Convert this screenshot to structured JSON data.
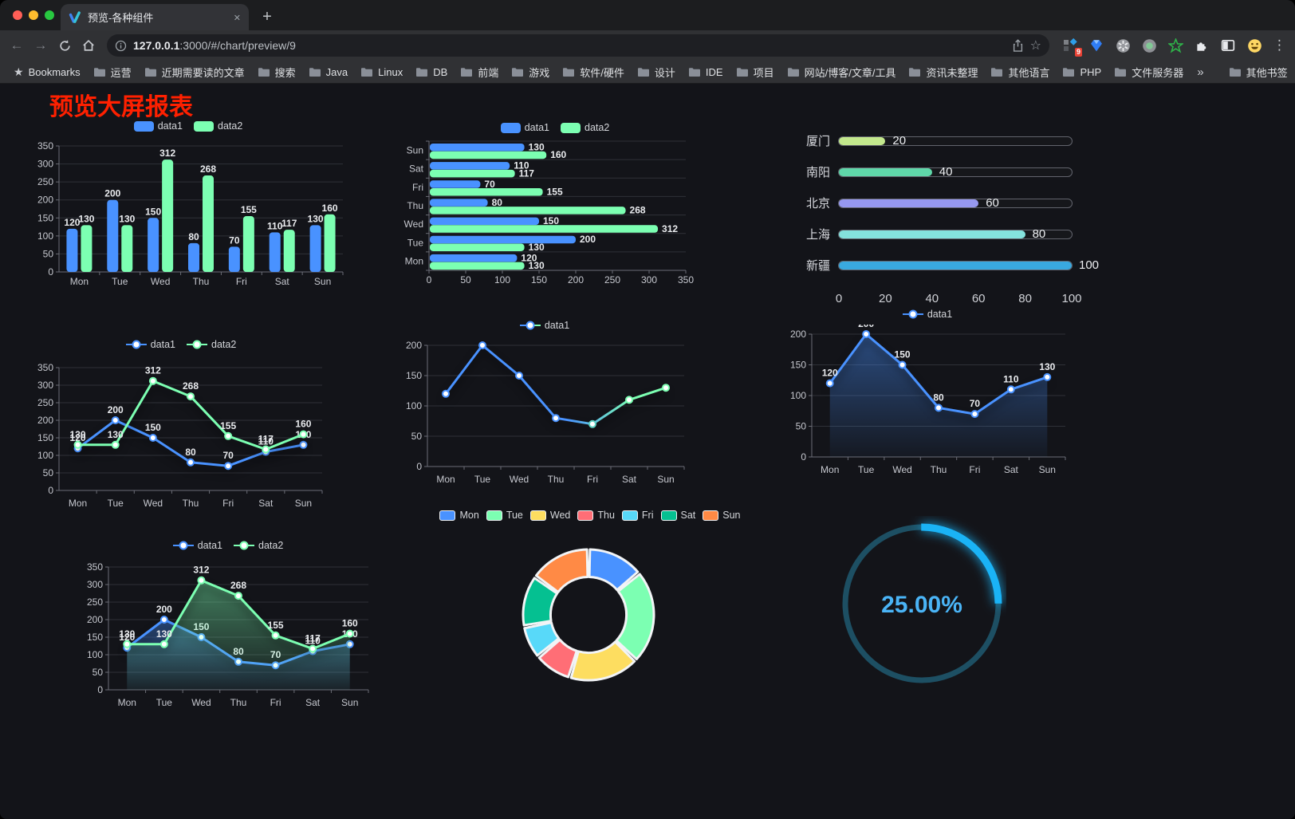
{
  "browser": {
    "tab": {
      "title": "预览-各种组件"
    },
    "url": {
      "host": "127.0.0.1",
      "rest": ":3000/#/chart/preview/9"
    },
    "extension_badge": "9",
    "bookmarks": [
      {
        "label": "Bookmarks",
        "icon": "star"
      },
      {
        "label": "运营",
        "icon": "folder"
      },
      {
        "label": "近期需要读的文章",
        "icon": "folder"
      },
      {
        "label": "搜索",
        "icon": "folder"
      },
      {
        "label": "Java",
        "icon": "folder"
      },
      {
        "label": "Linux",
        "icon": "folder"
      },
      {
        "label": "DB",
        "icon": "folder"
      },
      {
        "label": "前端",
        "icon": "folder"
      },
      {
        "label": "游戏",
        "icon": "folder"
      },
      {
        "label": "软件/硬件",
        "icon": "folder"
      },
      {
        "label": "设计",
        "icon": "folder"
      },
      {
        "label": "IDE",
        "icon": "folder"
      },
      {
        "label": "项目",
        "icon": "folder"
      },
      {
        "label": "网站/博客/文章/工具",
        "icon": "folder"
      },
      {
        "label": "资讯未整理",
        "icon": "folder"
      },
      {
        "label": "其他语言",
        "icon": "folder"
      },
      {
        "label": "PHP",
        "icon": "folder"
      },
      {
        "label": "文件服务器",
        "icon": "folder"
      }
    ],
    "bookmarks_overflow": "»",
    "other_bookmarks": "其他书签"
  },
  "page": {
    "title": "预览大屏报表",
    "title_color": "#ff2000"
  },
  "palette": {
    "blue": "#4992ff",
    "green": "#7cffb2"
  },
  "chart_data": [
    {
      "type": "bar",
      "legend_style": "pill",
      "legend": [
        "data1",
        "data2"
      ],
      "categories": [
        "Mon",
        "Tue",
        "Wed",
        "Thu",
        "Fri",
        "Sat",
        "Sun"
      ],
      "series": [
        {
          "name": "data1",
          "color": "#4992ff",
          "values": [
            120,
            200,
            150,
            80,
            70,
            110,
            130
          ],
          "labels": true
        },
        {
          "name": "data2",
          "color": "#7cffb2",
          "values": [
            130,
            130,
            312,
            268,
            155,
            117,
            160
          ],
          "labels": true
        }
      ],
      "ylim": [
        0,
        350
      ],
      "ystep": 50,
      "grid": true,
      "legend_position": "top"
    },
    {
      "type": "bar-horizontal",
      "legend_style": "pill",
      "legend": [
        "data1",
        "data2"
      ],
      "categories_top_to_bottom": [
        "Sun",
        "Sat",
        "Fri",
        "Thu",
        "Wed",
        "Tue",
        "Mon"
      ],
      "series": [
        {
          "name": "data1",
          "color": "#4992ff",
          "values": [
            130,
            110,
            70,
            80,
            150,
            200,
            120
          ],
          "labels": true
        },
        {
          "name": "data2",
          "color": "#7cffb2",
          "values": [
            160,
            117,
            155,
            268,
            312,
            130,
            130
          ],
          "labels": true
        }
      ],
      "xlim": [
        0,
        350
      ],
      "xstep": 50,
      "grid": true,
      "legend_position": "top"
    },
    {
      "type": "progress-bar",
      "rows": [
        {
          "label": "厦门",
          "value": 20,
          "color": "#c3e88d"
        },
        {
          "label": "南阳",
          "value": 40,
          "color": "#5fd7a9"
        },
        {
          "label": "北京",
          "value": 60,
          "color": "#9698f0"
        },
        {
          "label": "上海",
          "value": 80,
          "color": "#84e2dd"
        },
        {
          "label": "新疆",
          "value": 100,
          "color": "#39a9e0"
        }
      ],
      "xlim": [
        0,
        100
      ],
      "xticks": [
        0,
        20,
        40,
        60,
        80,
        100
      ]
    },
    {
      "type": "line",
      "legend_style": "dot",
      "legend": [
        "data1",
        "data2"
      ],
      "categories": [
        "Mon",
        "Tue",
        "Wed",
        "Thu",
        "Fri",
        "Sat",
        "Sun"
      ],
      "series": [
        {
          "name": "data1",
          "color": "#4992ff",
          "values": [
            120,
            200,
            150,
            80,
            70,
            110,
            130
          ],
          "labels": true
        },
        {
          "name": "data2",
          "color": "#7cffb2",
          "values": [
            130,
            130,
            312,
            268,
            155,
            117,
            160
          ],
          "labels": true
        }
      ],
      "ylim": [
        0,
        350
      ],
      "ystep": 50,
      "grid": true,
      "legend_position": "top"
    },
    {
      "type": "line",
      "legend_style": "dot",
      "legend": [
        "data1"
      ],
      "categories": [
        "Mon",
        "Tue",
        "Wed",
        "Thu",
        "Fri",
        "Sat",
        "Sun"
      ],
      "series": [
        {
          "name": "data1",
          "color": "#4992ff",
          "gradient": [
            "#4992ff",
            "#7cffb2"
          ],
          "point_colors": [
            "#4992ff",
            "#4992ff",
            "#4992ff",
            "#4992ff",
            "#5ed2c3",
            "#7cffb2",
            "#7cffb2"
          ],
          "values": [
            120,
            200,
            150,
            80,
            70,
            110,
            130
          ],
          "labels": false
        }
      ],
      "ylim": [
        0,
        200
      ],
      "ystep": 50,
      "grid": true,
      "legend_position": "top"
    },
    {
      "type": "area",
      "legend_style": "dot",
      "legend": [
        "data1"
      ],
      "categories": [
        "Mon",
        "Tue",
        "Wed",
        "Thu",
        "Fri",
        "Sat",
        "Sun"
      ],
      "series": [
        {
          "name": "data1",
          "color": "#4992ff",
          "area": true,
          "values": [
            120,
            200,
            150,
            80,
            70,
            110,
            130
          ],
          "labels": true
        }
      ],
      "ylim": [
        0,
        200
      ],
      "ystep": 50,
      "grid": true,
      "legend_position": "top"
    },
    {
      "type": "area",
      "legend_style": "dot",
      "legend": [
        "data1",
        "data2"
      ],
      "categories": [
        "Mon",
        "Tue",
        "Wed",
        "Thu",
        "Fri",
        "Sat",
        "Sun"
      ],
      "series": [
        {
          "name": "data1",
          "color": "#4992ff",
          "area": true,
          "values": [
            120,
            200,
            150,
            80,
            70,
            110,
            130
          ],
          "labels": true
        },
        {
          "name": "data2",
          "color": "#7cffb2",
          "area": true,
          "values": [
            130,
            130,
            312,
            268,
            155,
            117,
            160
          ],
          "labels": true
        }
      ],
      "ylim": [
        0,
        350
      ],
      "ystep": 50,
      "grid": true,
      "legend_position": "top"
    },
    {
      "type": "pie",
      "legend_style": "pill-border",
      "legend": [
        "Mon",
        "Tue",
        "Wed",
        "Thu",
        "Fri",
        "Sat",
        "Sun"
      ],
      "items": [
        {
          "name": "Mon",
          "value": 120,
          "color": "#4992ff"
        },
        {
          "name": "Tue",
          "value": 200,
          "color": "#7cffb2"
        },
        {
          "name": "Wed",
          "value": 150,
          "color": "#fddd60"
        },
        {
          "name": "Thu",
          "value": 80,
          "color": "#ff6e76"
        },
        {
          "name": "Fri",
          "value": 70,
          "color": "#58d9f9"
        },
        {
          "name": "Sat",
          "value": 110,
          "color": "#05c091"
        },
        {
          "name": "Sun",
          "value": 130,
          "color": "#ff8a45"
        }
      ],
      "inner_radius_ratio": 0.58,
      "legend_position": "top"
    },
    {
      "type": "gauge",
      "value": 25,
      "label": "25.00%",
      "color": "#1ab3f6",
      "track": "#1d4f63",
      "text_color": "#4ab4f6"
    }
  ]
}
